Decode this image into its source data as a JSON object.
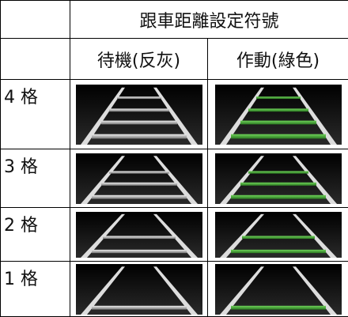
{
  "table": {
    "title": "跟車距離設定符號",
    "columns": [
      "待機(反灰)",
      "作動(綠色)"
    ],
    "rows": [
      "4 格",
      "3 格",
      "2 格",
      "1 格"
    ]
  }
}
